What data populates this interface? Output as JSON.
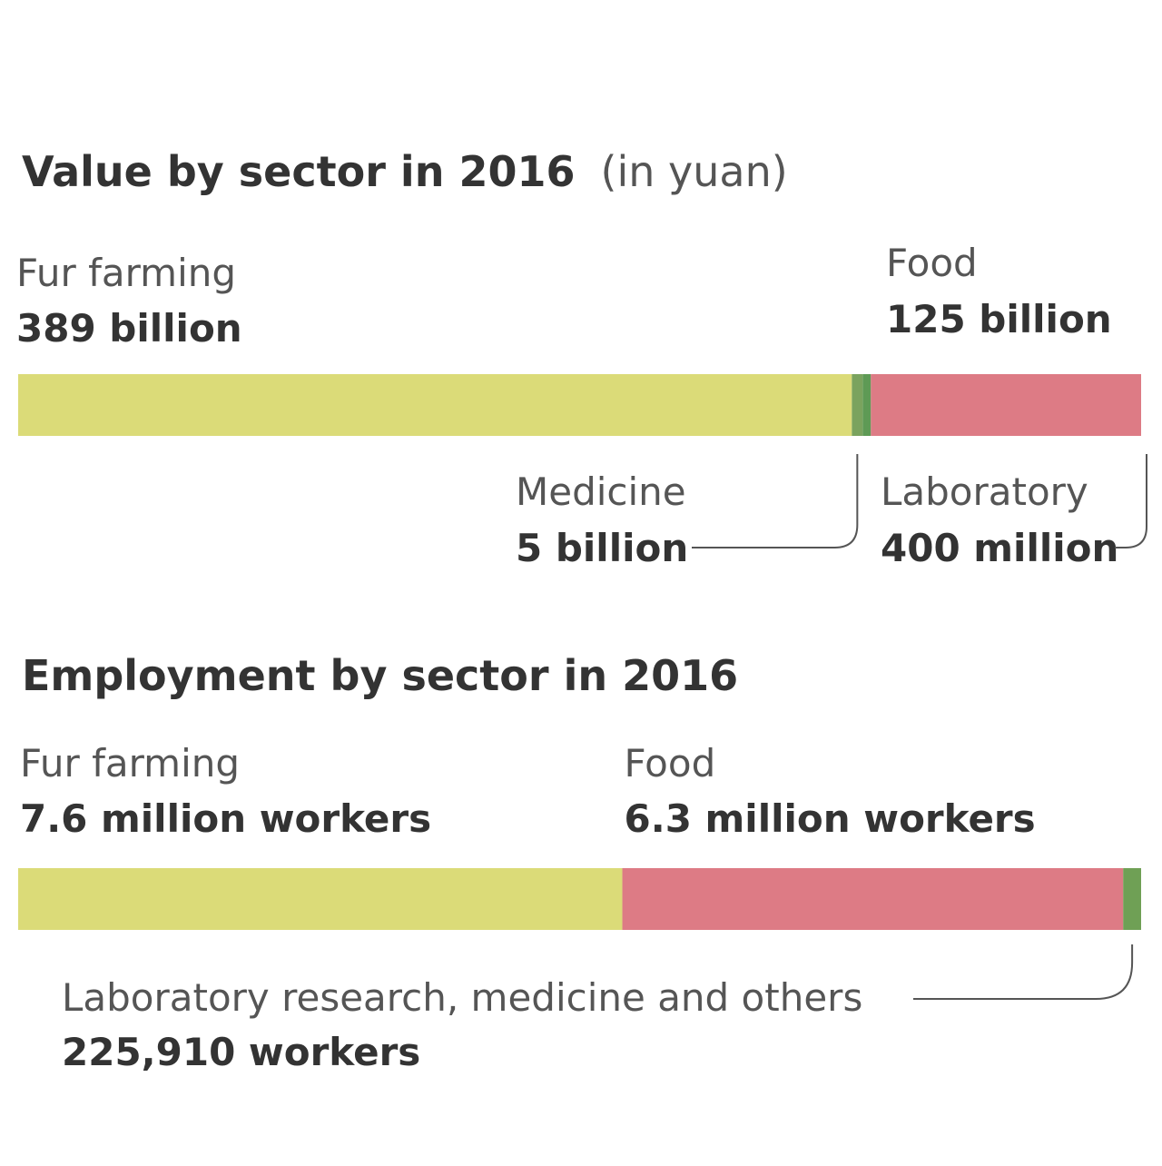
{
  "chart_data": [
    {
      "type": "bar",
      "stacked": true,
      "orientation": "horizontal",
      "title": "Value by sector in 2016",
      "title_suffix": "(in yuan)",
      "unit": "yuan",
      "segments": [
        {
          "key": "fur",
          "name": "Fur farming",
          "value": 389000000000,
          "label_value": "389 billion",
          "color": "#dbdb78"
        },
        {
          "key": "medicine",
          "name": "Medicine",
          "value": 5000000000,
          "label_value": "5 billion",
          "color": "#7aa35e"
        },
        {
          "key": "lab",
          "name": "Laboratory",
          "value": 400000000,
          "label_value": "400 million",
          "color": "#5e9a55"
        },
        {
          "key": "food",
          "name": "Food",
          "value": 125000000000,
          "label_value": "125 billion",
          "color": "#dd7b85"
        }
      ]
    },
    {
      "type": "bar",
      "stacked": true,
      "orientation": "horizontal",
      "title": "Employment by sector in 2016",
      "unit": "workers",
      "segments": [
        {
          "key": "fur",
          "name": "Fur farming",
          "value": 7600000,
          "label_value": "7.6 million workers",
          "color": "#dbdb78"
        },
        {
          "key": "food",
          "name": "Food",
          "value": 6300000,
          "label_value": "6.3 million workers",
          "color": "#dd7b85"
        },
        {
          "key": "others",
          "name": "Laboratory research, medicine and others",
          "value": 225910,
          "label_value": "225,910 workers",
          "color": "#6fa055"
        }
      ]
    }
  ]
}
